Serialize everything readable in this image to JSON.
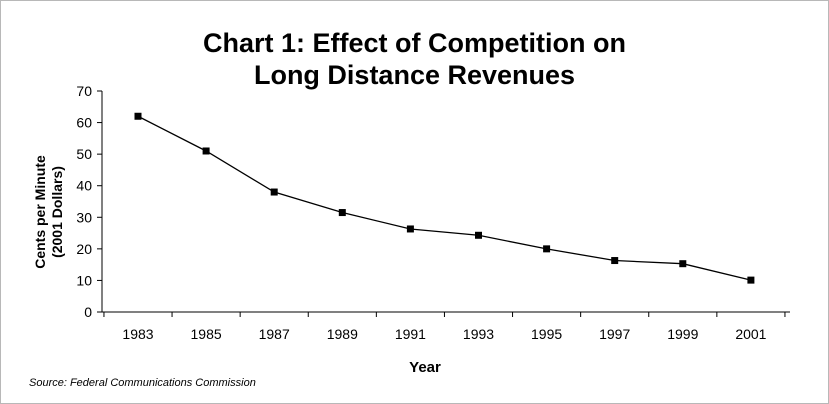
{
  "chart_data": {
    "type": "line",
    "title_line1": "Chart 1: Effect of Competition on",
    "title_line2": "Long Distance Revenues",
    "ylabel_line1": "Cents per Minute",
    "ylabel_line2": "(2001 Dollars)",
    "xlabel": "Year",
    "categories": [
      "1983",
      "1985",
      "1987",
      "1989",
      "1991",
      "1993",
      "1995",
      "1997",
      "1999",
      "2001"
    ],
    "values": [
      62,
      51,
      38,
      31.5,
      26.3,
      24.3,
      20,
      16.3,
      15.3,
      10.1
    ],
    "ylim": [
      0,
      70
    ],
    "yticks": [
      0,
      10,
      20,
      30,
      40,
      50,
      60,
      70
    ],
    "grid": false,
    "legend": "none",
    "line_color": "#000000",
    "marker": "square",
    "source": "Source: Federal Communications Commission"
  }
}
